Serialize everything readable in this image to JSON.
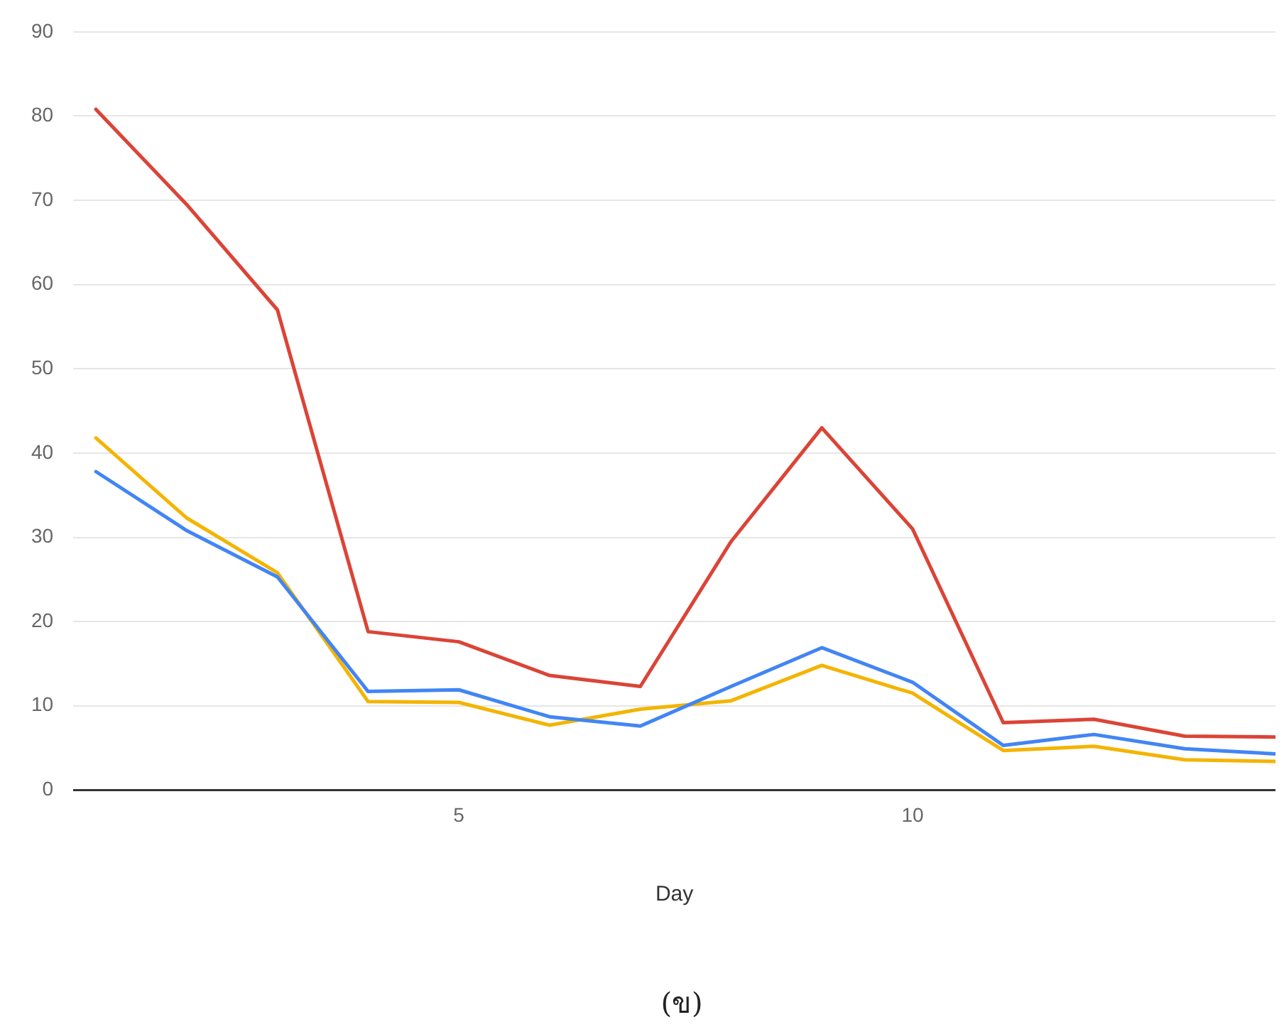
{
  "chart_data": {
    "type": "line",
    "xlabel": "Day",
    "x": [
      1,
      2,
      3,
      4,
      5,
      6,
      7,
      8,
      9,
      10,
      11,
      12,
      13,
      14
    ],
    "series": [
      {
        "color": "#db4437",
        "values": [
          80.8,
          69.5,
          57,
          18.8,
          17.6,
          13.6,
          12.3,
          29.5,
          43,
          31,
          8,
          8.4,
          6.4,
          6.3
        ]
      },
      {
        "color": "#4285f4",
        "values": [
          37.8,
          30.8,
          25.3,
          11.7,
          11.9,
          8.7,
          7.6,
          12.3,
          16.9,
          12.8,
          5.3,
          6.6,
          4.9,
          4.3
        ]
      },
      {
        "color": "#f4b400",
        "values": [
          41.8,
          32.3,
          25.8,
          10.5,
          10.4,
          7.7,
          9.6,
          10.6,
          14.8,
          11.5,
          4.7,
          5.2,
          3.6,
          3.4
        ]
      }
    ],
    "xlim": [
      0.75,
      14
    ],
    "xticks": [
      5,
      10
    ],
    "ylim": [
      0,
      90
    ],
    "yticks": [
      0,
      10,
      20,
      30,
      40,
      50,
      60,
      70,
      80,
      90
    ],
    "grid": "y",
    "legend": false,
    "marker": "none",
    "line_style": "solid",
    "annotations": [
      "(ข)"
    ]
  }
}
